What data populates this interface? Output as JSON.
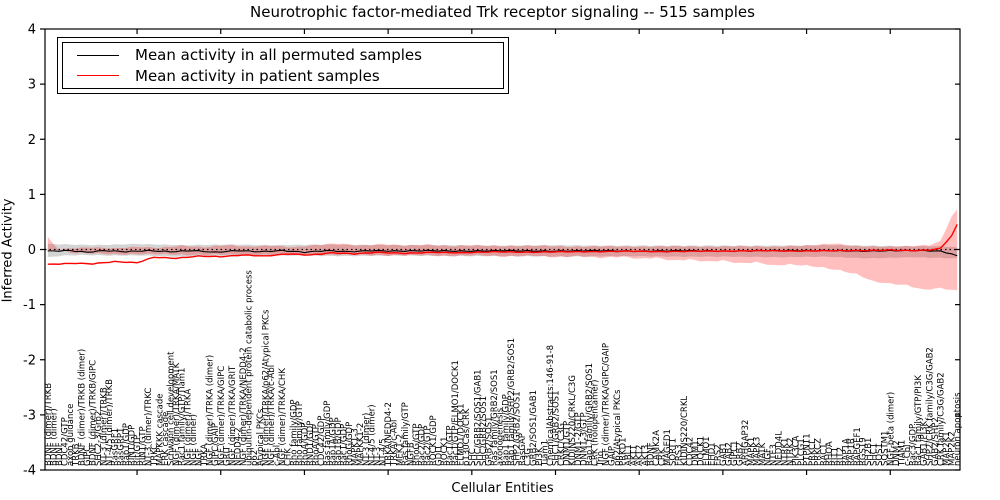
{
  "chart_data": {
    "type": "line",
    "title": "Neurotrophic factor-mediated Trk receptor signaling -- 515 samples",
    "xlabel": "Cellular Entities",
    "ylabel": "Inferred Activity",
    "ylim": [
      -4,
      4
    ],
    "yticks": [
      "4",
      "3",
      "2",
      "1",
      "0",
      "-1",
      "-2",
      "-3",
      "-4"
    ],
    "ytick_values": [
      4,
      3,
      2,
      1,
      0,
      -1,
      -2,
      -3,
      -4
    ],
    "grid": "off",
    "legend_position": "upper left",
    "legend": [
      {
        "label": "Mean activity in all permuted samples",
        "color": "#000000"
      },
      {
        "label": "Mean activity in patient samples",
        "color": "#ff0000"
      }
    ],
    "colors": {
      "permuted_line": "#000000",
      "patient_line": "#ff0000",
      "permuted_band": "rgba(0,0,0,0.17)",
      "patient_band": "rgba(255,0,0,0.25)",
      "zero_line": "#000000"
    },
    "categories": [
      "BDNF (dimer)/TRKB",
      "BDNF (dimer)",
      "BDNF",
      "CDC42/GTP",
      "axon guidance",
      "TRKB",
      "BDNF (dimer)/TRKB (dimer)",
      "GIPC",
      "BDNF (dimer)/TRKB/GIPC",
      "SHC2-3/Grb2",
      "NT-3 (dimer)/TRKB",
      "NT-4/5 (dimer)/TRKB",
      "RasGRF1",
      "RasGRP1",
      "Rap1/GDP",
      "RIN1/GDP",
      "Rit/GTP",
      "RIN1/GTP",
      "NT-3 (dimer)/TRKC",
      "TRKC",
      "MAPKKK cascade",
      "ERK cascade",
      "Schwann cell development",
      "NGF (dimer)/TRKA/MATK",
      "Rac1 family/GTP/Tiam1",
      "NGF (dimer)/TRKA",
      "NGF (dimer)",
      "NGF",
      "TRKA",
      "NGF (dimer)/TRKA (dimer)",
      "GIPC/GAIP",
      "NGF (dimer)/TRKA/GIPC",
      "GRIT",
      "NGF (dimer)/TRKA/GRIT",
      "NEDD4-2",
      "NGF (dimer)/TRKA/NEDD4-2",
      "ubiquitin-dependent protein catabolic process",
      "p62",
      "Atypical PKCs",
      "NGF (dimer)/TRKA/p62/Atypical PKCs",
      "NGF (dimer)/TRKA/c-Abl",
      "c-Abl",
      "NGF (dimer)/TRKA/CHK",
      "CHK",
      "Rho family/GDP",
      "Rho family/GTP",
      "RhoA/GDP",
      "RND1/GDP",
      "RhoA/GTP",
      "CDC42/GDP",
      "Ras family/GDP",
      "Rap1A/GDP",
      "Rap1B/GDP",
      "Rac1/GDP",
      "RhoG/GDP",
      "MAPK1-3",
      "MAPKK1-2",
      "NT-3 (dimer)",
      "NT-4/5 (dimer)",
      "NT-3",
      "NT-4/5",
      "TRKA/NEDD4-2",
      "TRKA/c-Abl",
      "MEK1-2",
      "Ras family/GTP",
      "NGFB",
      "RhoG/GTP",
      "Rac2/GDP",
      "Rac2/GTP",
      "ROCK1/GDP",
      "GDI1",
      "ROCK1",
      "Rac1/GTP",
      "Rac1/GTP/ELMO1/DOCK1",
      "ELMO1/DOCK1",
      "p130Cas/CRK",
      "SHC",
      "SHC/GRB2/SOS1/GAB1",
      "SHC/GRB2/SOS1",
      "GRB2/SOS1",
      "Ras family/GRB2/SOS1",
      "axonogenesis",
      "Rap1 family/GDP",
      "Rap1 family/SHP2/GRB2/SOS1",
      "SHP2/GRB2/SOS1",
      "RasGAP",
      "C3G",
      "GRB2/SOS1/GAB1",
      "PI3K",
      "Tiam1",
      "ChemicalAbstracts:146-91-8",
      "SHC1/GRB2/SOS1",
      "CRKL/C3G",
      "DNM1/GTP",
      "KIDINS220/CRKL/C3G",
      "DNM1-2/GTP",
      "DNM1-3/GTP",
      "Rap1 family/GRB2/SOS1",
      "CRK (holopentamer)",
      "Trio",
      "NGF (dimer)/TRKA/GIPC/GAIP",
      "GAIP",
      "p62/Atypical PKCs",
      "PRKD1",
      "ABL1",
      "AKT1",
      "AKT2",
      "AKT3",
      "BDNF",
      "CAMK2A",
      "CRK",
      "MAGED1",
      "SORT1",
      "FRS3",
      "KIDINS220/CRKL",
      "CDC42",
      "DNM1",
      "DOCK1",
      "ELMO1",
      "EHD1",
      "FRS2",
      "GAB1",
      "GAB2",
      "GIPC1",
      "GRB2",
      "ARHGAP32",
      "MAPK1",
      "MAPK3",
      "MATK",
      "NGF",
      "NTF3",
      "NEDD4L",
      "NTRK1",
      "NTRK2",
      "PIK3CA",
      "PLCG1",
      "PTPN11",
      "PRKCI",
      "PRKCZ",
      "RAC1",
      "RHOA",
      "RIT1",
      "RIT2",
      "RAP1A",
      "RAP1B",
      "RAPGEF1",
      "RGS19",
      "SH2B1",
      "SHC1",
      "SOS1",
      "SQSTM1",
      "NGF-beta (dimer)",
      "DNM2",
      "TIAM1",
      "c-Cbl",
      "Rac3/GDP",
      "Rac1 family/GTP/PI3K",
      "GAB1/PI3K",
      "SHP2/CRK family/C3G/GAB2",
      "GAB2/SHP2",
      "CRK family/C3G/GAB2",
      "MAP2K1",
      "MAP2K2",
      "neuron apoptosis"
    ],
    "series": [
      {
        "name": "Mean activity in all permuted samples",
        "control_points": [
          [
            0,
            -0.03
          ],
          [
            4,
            -0.02
          ],
          [
            7,
            -0.05
          ],
          [
            10,
            -0.02
          ],
          [
            14,
            -0.04
          ],
          [
            18,
            -0.02
          ],
          [
            22,
            -0.04
          ],
          [
            26,
            -0.02
          ],
          [
            30,
            -0.05
          ],
          [
            34,
            -0.02
          ],
          [
            38,
            -0.04
          ],
          [
            42,
            -0.02
          ],
          [
            46,
            -0.05
          ],
          [
            50,
            -0.02
          ],
          [
            54,
            -0.04
          ],
          [
            58,
            -0.02
          ],
          [
            63,
            -0.03
          ],
          [
            68,
            -0.02
          ],
          [
            74,
            -0.03
          ],
          [
            82,
            -0.02
          ],
          [
            90,
            -0.03
          ],
          [
            98,
            -0.02
          ],
          [
            106,
            -0.03
          ],
          [
            114,
            -0.02
          ],
          [
            122,
            -0.03
          ],
          [
            130,
            -0.02
          ],
          [
            138,
            -0.02
          ],
          [
            146,
            -0.03
          ],
          [
            152,
            -0.02
          ],
          [
            157,
            -0.02
          ],
          [
            160,
            -0.03
          ],
          [
            162,
            -0.08
          ],
          [
            163,
            -0.12
          ]
        ]
      },
      {
        "name": "Mean activity in patient samples",
        "control_points": [
          [
            0,
            -0.27
          ],
          [
            5,
            -0.25
          ],
          [
            8,
            -0.26
          ],
          [
            12,
            -0.22
          ],
          [
            16,
            -0.24
          ],
          [
            19,
            -0.14
          ],
          [
            23,
            -0.16
          ],
          [
            27,
            -0.12
          ],
          [
            31,
            -0.13
          ],
          [
            35,
            -0.1
          ],
          [
            39,
            -0.12
          ],
          [
            43,
            -0.08
          ],
          [
            47,
            -0.1
          ],
          [
            51,
            -0.06
          ],
          [
            55,
            -0.08
          ],
          [
            59,
            -0.05
          ],
          [
            64,
            -0.07
          ],
          [
            69,
            -0.05
          ],
          [
            74,
            -0.06
          ],
          [
            80,
            -0.04
          ],
          [
            86,
            -0.05
          ],
          [
            92,
            -0.04
          ],
          [
            98,
            -0.04
          ],
          [
            104,
            -0.03
          ],
          [
            110,
            -0.04
          ],
          [
            116,
            -0.03
          ],
          [
            122,
            -0.03
          ],
          [
            128,
            -0.02
          ],
          [
            134,
            -0.03
          ],
          [
            140,
            -0.02
          ],
          [
            146,
            -0.02
          ],
          [
            151,
            -0.01
          ],
          [
            155,
            -0.02
          ],
          [
            158,
            -0.01
          ],
          [
            160,
            0.02
          ],
          [
            162,
            0.25
          ],
          [
            163,
            0.45
          ]
        ]
      }
    ],
    "bands": {
      "permuted_hi": [
        [
          0,
          0.1
        ],
        [
          8,
          0.08
        ],
        [
          16,
          0.1
        ],
        [
          24,
          0.08
        ],
        [
          32,
          0.09
        ],
        [
          40,
          0.08
        ],
        [
          50,
          0.09
        ],
        [
          60,
          0.08
        ],
        [
          70,
          0.08
        ],
        [
          80,
          0.07
        ],
        [
          90,
          0.08
        ],
        [
          100,
          0.07
        ],
        [
          110,
          0.07
        ],
        [
          120,
          0.07
        ],
        [
          130,
          0.07
        ],
        [
          140,
          0.08
        ],
        [
          148,
          0.07
        ],
        [
          154,
          0.06
        ],
        [
          159,
          0.06
        ],
        [
          162,
          0.05
        ],
        [
          163,
          0.03
        ]
      ],
      "permuted_lo": [
        [
          0,
          -0.16
        ],
        [
          8,
          -0.14
        ],
        [
          16,
          -0.16
        ],
        [
          24,
          -0.13
        ],
        [
          32,
          -0.14
        ],
        [
          40,
          -0.13
        ],
        [
          50,
          -0.13
        ],
        [
          60,
          -0.12
        ],
        [
          70,
          -0.13
        ],
        [
          80,
          -0.12
        ],
        [
          90,
          -0.12
        ],
        [
          100,
          -0.11
        ],
        [
          110,
          -0.12
        ],
        [
          120,
          -0.11
        ],
        [
          130,
          -0.11
        ],
        [
          140,
          -0.13
        ],
        [
          146,
          -0.11
        ],
        [
          152,
          -0.11
        ],
        [
          157,
          -0.1
        ],
        [
          160,
          -0.11
        ],
        [
          163,
          -0.14
        ]
      ],
      "patient_hi": [
        [
          0,
          -0.03
        ],
        [
          4,
          0.02
        ],
        [
          8,
          0.04
        ],
        [
          12,
          0.02
        ],
        [
          16,
          0.05
        ],
        [
          20,
          0.03
        ],
        [
          24,
          0.07
        ],
        [
          28,
          0.04
        ],
        [
          32,
          0.08
        ],
        [
          36,
          0.05
        ],
        [
          40,
          0.07
        ],
        [
          44,
          0.04
        ],
        [
          48,
          0.08
        ],
        [
          52,
          0.11
        ],
        [
          56,
          0.07
        ],
        [
          60,
          0.1
        ],
        [
          64,
          0.07
        ],
        [
          68,
          0.09
        ],
        [
          72,
          0.06
        ],
        [
          76,
          0.08
        ],
        [
          82,
          0.06
        ],
        [
          88,
          0.07
        ],
        [
          94,
          0.05
        ],
        [
          100,
          0.06
        ],
        [
          106,
          0.05
        ],
        [
          112,
          0.06
        ],
        [
          118,
          0.05
        ],
        [
          124,
          0.06
        ],
        [
          130,
          0.05
        ],
        [
          136,
          0.07
        ],
        [
          141,
          0.11
        ],
        [
          145,
          0.06
        ],
        [
          150,
          0.05
        ],
        [
          154,
          0.06
        ],
        [
          158,
          0.08
        ],
        [
          160,
          0.15
        ],
        [
          162,
          0.6
        ],
        [
          163,
          0.72
        ]
      ],
      "patient_lo": [
        [
          0,
          -0.75
        ],
        [
          3,
          -0.7
        ],
        [
          6,
          -0.73
        ],
        [
          9,
          -0.65
        ],
        [
          12,
          -0.62
        ],
        [
          15,
          -0.58
        ],
        [
          18,
          -0.45
        ],
        [
          21,
          -0.38
        ],
        [
          24,
          -0.33
        ],
        [
          27,
          -0.29
        ],
        [
          30,
          -0.27
        ],
        [
          33,
          -0.29
        ],
        [
          36,
          -0.23
        ],
        [
          39,
          -0.25
        ],
        [
          42,
          -0.2
        ],
        [
          45,
          -0.22
        ],
        [
          48,
          -0.18
        ],
        [
          51,
          -0.2
        ],
        [
          54,
          -0.15
        ],
        [
          57,
          -0.17
        ],
        [
          60,
          -0.13
        ],
        [
          64,
          -0.15
        ],
        [
          68,
          -0.12
        ],
        [
          72,
          -0.14
        ],
        [
          76,
          -0.11
        ],
        [
          81,
          -0.13
        ],
        [
          86,
          -0.1
        ],
        [
          91,
          -0.12
        ],
        [
          96,
          -0.1
        ],
        [
          102,
          -0.11
        ],
        [
          108,
          -0.09
        ],
        [
          114,
          -0.1
        ],
        [
          120,
          -0.09
        ],
        [
          126,
          -0.1
        ],
        [
          132,
          -0.09
        ],
        [
          138,
          -0.1
        ],
        [
          144,
          -0.08
        ],
        [
          150,
          -0.09
        ],
        [
          155,
          -0.07
        ],
        [
          159,
          -0.06
        ],
        [
          161,
          0.0
        ],
        [
          162,
          0.1
        ],
        [
          163,
          0.22
        ]
      ]
    },
    "zero_line_value": 0,
    "major_tick_indices": [
      16,
      31,
      46,
      61,
      76,
      91,
      106,
      121,
      136,
      151
    ]
  }
}
